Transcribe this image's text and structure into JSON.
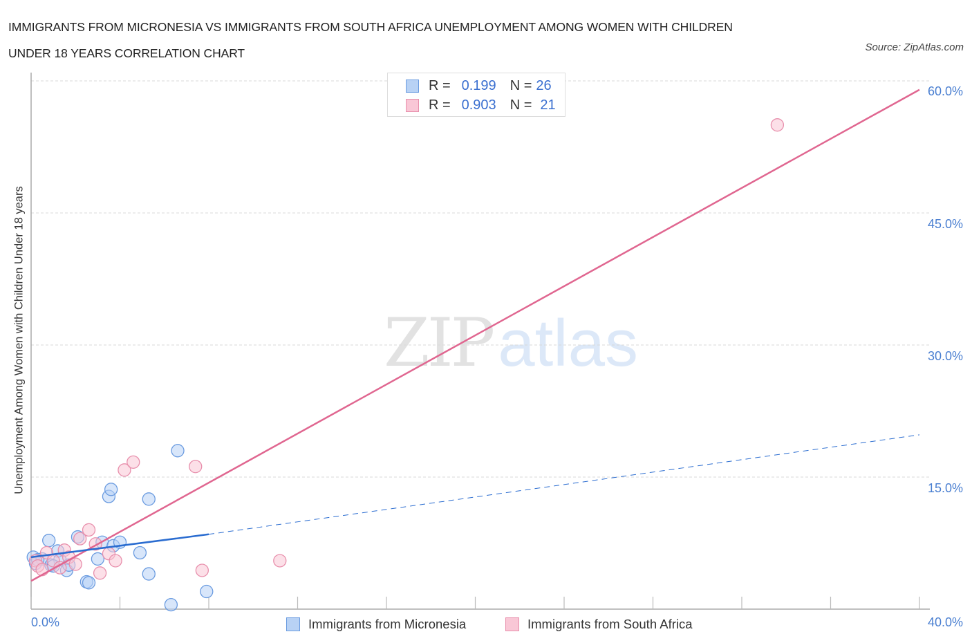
{
  "header": {
    "title_line1": "IMMIGRANTS FROM MICRONESIA VS IMMIGRANTS FROM SOUTH AFRICA UNEMPLOYMENT AMONG WOMEN WITH CHILDREN",
    "title_line2": "UNDER 18 YEARS CORRELATION CHART",
    "source": "Source: ZipAtlas.com"
  },
  "watermark": {
    "zip": "ZIP",
    "atlas": "atlas"
  },
  "colors": {
    "blue_fill": "#b8d2f5",
    "blue_stroke": "#6a9be0",
    "blue_line": "#2a6cd0",
    "pink_fill": "#f9c7d6",
    "pink_stroke": "#e88fac",
    "pink_line": "#e06690",
    "tick_label": "#4a7fd1",
    "grid": "#d9d9d9"
  },
  "legend_top": {
    "rows": [
      {
        "series": "Immigrants from Micronesia",
        "r_label": "R =",
        "r_value": "0.199",
        "n_label": "N =",
        "n_value": "26"
      },
      {
        "series": "Immigrants from South Africa",
        "r_label": "R =",
        "r_value": "0.903",
        "n_label": "N =",
        "n_value": "21"
      }
    ]
  },
  "legend_bottom": {
    "items": [
      {
        "label": "Immigrants from Micronesia"
      },
      {
        "label": "Immigrants from South Africa"
      }
    ]
  },
  "axes": {
    "y_label": "Unemployment Among Women with Children Under 18 years",
    "y_ticks": [
      "60.0%",
      "45.0%",
      "30.0%",
      "15.0%"
    ],
    "x_tick_left": "0.0%",
    "x_tick_right": "40.0%"
  },
  "chart_data": {
    "type": "scatter",
    "title": "Immigrants from Micronesia vs Immigrants from South Africa Unemployment Among Women with Children Under 18 years Correlation Chart",
    "xlabel": "",
    "ylabel": "Unemployment Among Women with Children Under 18 years",
    "xlim": [
      0,
      40
    ],
    "ylim": [
      0,
      60
    ],
    "x_unit": "%",
    "y_unit": "%",
    "y_gridlines": [
      15,
      30,
      45,
      60
    ],
    "x_minor_ticks": [
      0,
      4,
      8,
      12,
      16,
      20,
      24,
      28,
      32,
      36,
      40
    ],
    "legend_position": "bottom",
    "series": [
      {
        "name": "Immigrants from Micronesia",
        "R": 0.199,
        "N": 26,
        "points": [
          [
            0.1,
            5.9
          ],
          [
            0.2,
            5.2
          ],
          [
            0.5,
            5.7
          ],
          [
            0.8,
            7.8
          ],
          [
            0.9,
            5.0
          ],
          [
            1.2,
            6.6
          ],
          [
            1.3,
            5.6
          ],
          [
            1.6,
            4.4
          ],
          [
            1.7,
            5.0
          ],
          [
            2.1,
            8.2
          ],
          [
            2.5,
            3.1
          ],
          [
            2.6,
            3.0
          ],
          [
            3.0,
            5.7
          ],
          [
            3.2,
            7.6
          ],
          [
            3.5,
            12.8
          ],
          [
            3.6,
            13.6
          ],
          [
            3.7,
            7.2
          ],
          [
            4.0,
            7.6
          ],
          [
            4.9,
            6.4
          ],
          [
            5.3,
            12.5
          ],
          [
            5.3,
            4.0
          ],
          [
            6.3,
            0.5
          ],
          [
            6.6,
            18.0
          ],
          [
            7.9,
            2.0
          ],
          [
            0.3,
            5.6
          ],
          [
            1.0,
            4.9
          ]
        ],
        "trend": {
          "x0": 0,
          "y0": 5.9,
          "x_solid_end": 8.0,
          "y_solid_end": 8.5,
          "x1": 40,
          "y1": 19.8,
          "style_after_solid": "dashed"
        }
      },
      {
        "name": "Immigrants from South Africa",
        "R": 0.903,
        "N": 21,
        "points": [
          [
            0.2,
            5.5
          ],
          [
            0.3,
            4.9
          ],
          [
            0.7,
            6.4
          ],
          [
            1.0,
            5.5
          ],
          [
            1.5,
            6.7
          ],
          [
            1.7,
            5.9
          ],
          [
            2.0,
            5.1
          ],
          [
            2.2,
            8.0
          ],
          [
            2.6,
            9.0
          ],
          [
            2.9,
            7.4
          ],
          [
            3.1,
            4.1
          ],
          [
            3.5,
            6.3
          ],
          [
            3.8,
            5.5
          ],
          [
            4.2,
            15.8
          ],
          [
            4.6,
            16.7
          ],
          [
            7.4,
            16.2
          ],
          [
            7.7,
            4.4
          ],
          [
            11.2,
            5.5
          ],
          [
            33.6,
            55.0
          ],
          [
            0.5,
            4.5
          ],
          [
            1.3,
            4.7
          ]
        ],
        "trend": {
          "x0": 0,
          "y0": 3.2,
          "x1": 40,
          "y1": 59.0,
          "style": "solid"
        }
      }
    ]
  }
}
